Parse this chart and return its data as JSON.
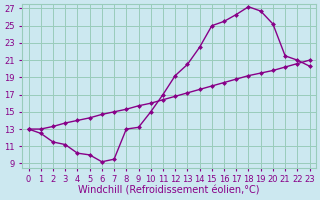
{
  "background_color": "#cce8f0",
  "grid_color": "#99ccbb",
  "line_color": "#880088",
  "xlim": [
    -0.5,
    23.5
  ],
  "ylim": [
    8.5,
    27.5
  ],
  "xlabel": "Windchill (Refroidissement éolien,°C)",
  "xticks": [
    0,
    1,
    2,
    3,
    4,
    5,
    6,
    7,
    8,
    9,
    10,
    11,
    12,
    13,
    14,
    15,
    16,
    17,
    18,
    19,
    20,
    21,
    22,
    23
  ],
  "yticks": [
    9,
    11,
    13,
    15,
    17,
    19,
    21,
    23,
    25,
    27
  ],
  "line1_x": [
    0,
    1,
    2,
    3,
    4,
    5,
    6,
    7,
    8,
    9,
    10,
    11,
    12,
    13,
    14,
    15,
    16,
    17,
    18,
    19,
    20,
    21,
    22,
    23
  ],
  "line1_y": [
    13.0,
    12.5,
    11.5,
    11.2,
    10.2,
    10.0,
    9.2,
    9.5,
    13.0,
    13.2,
    15.0,
    17.0,
    19.2,
    20.5,
    22.5,
    25.0,
    25.5,
    26.3,
    27.2,
    26.7,
    25.2,
    21.5,
    21.0,
    20.3
  ],
  "line2_x": [
    0,
    1,
    2,
    3,
    4,
    5,
    6,
    7,
    8,
    9,
    10,
    11,
    12,
    13,
    14,
    15,
    16,
    17,
    18,
    19,
    20,
    21,
    22,
    23
  ],
  "line2_y": [
    13.0,
    13.0,
    13.3,
    13.7,
    14.0,
    14.3,
    14.7,
    15.0,
    15.3,
    15.7,
    16.0,
    16.4,
    16.8,
    17.2,
    17.6,
    18.0,
    18.4,
    18.8,
    19.2,
    19.5,
    19.8,
    20.2,
    20.6,
    21.0
  ],
  "marker": "D",
  "markersize": 2.5,
  "linewidth": 1.0,
  "tick_fontsize": 6.0,
  "xlabel_fontsize": 7.0,
  "tick_color": "#880088",
  "label_color": "#880088"
}
